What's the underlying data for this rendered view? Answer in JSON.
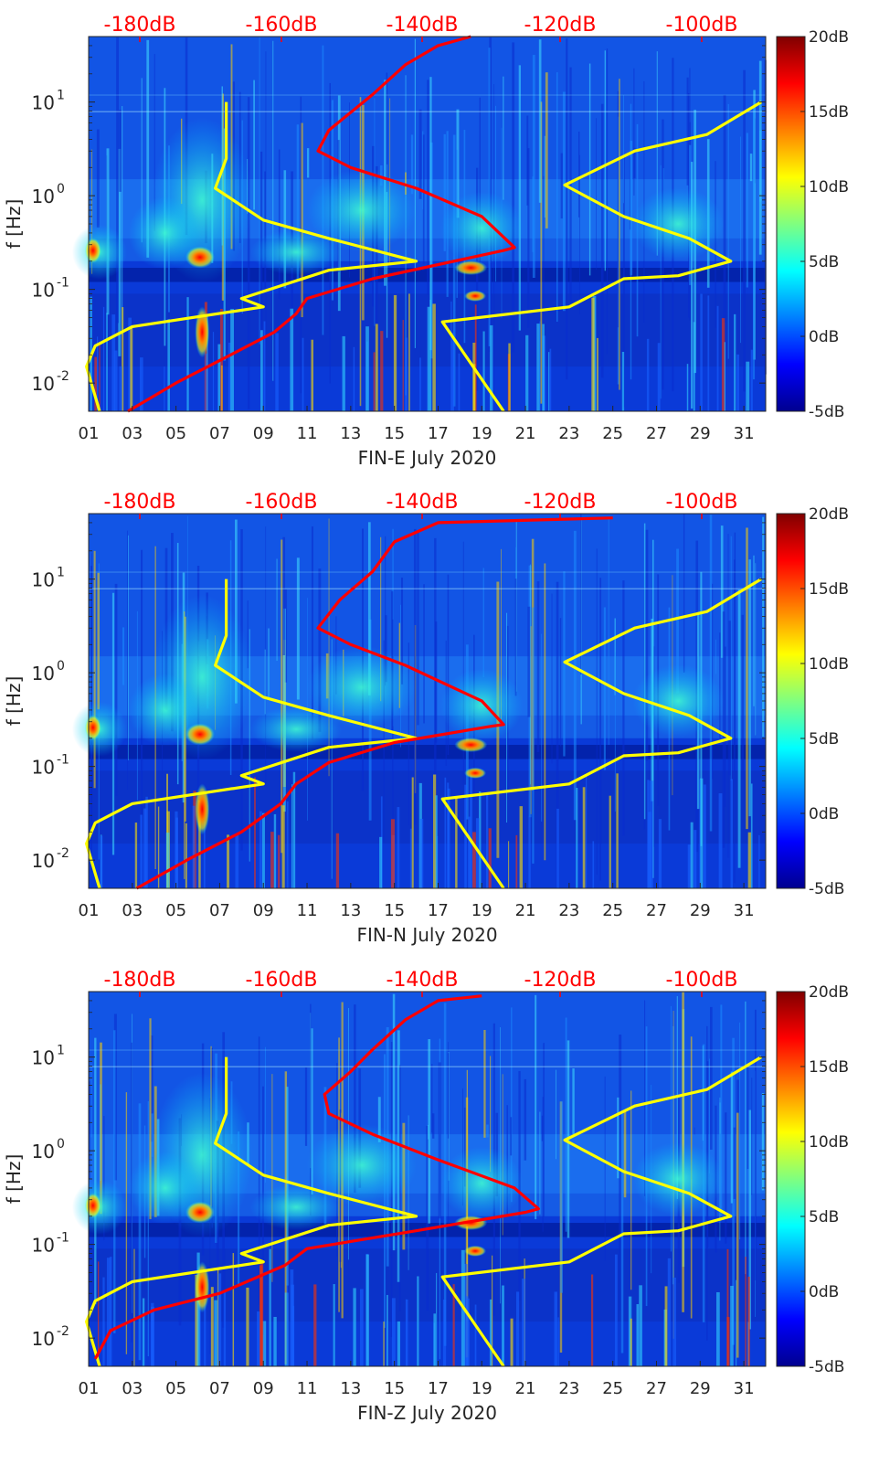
{
  "chart_data": [
    {
      "type": "heatmap",
      "title": "",
      "xlabel": "FIN-E July 2020",
      "ylabel": "f [Hz]",
      "xlim": [
        1,
        32
      ],
      "ylim": [
        0.005,
        50
      ],
      "y_scale": "log",
      "x_ticks": [
        "01",
        "03",
        "05",
        "07",
        "09",
        "11",
        "13",
        "15",
        "17",
        "19",
        "21",
        "23",
        "25",
        "27",
        "29",
        "31"
      ],
      "y_ticks": [
        "10^-2",
        "10^-1",
        "10^0",
        "10^1"
      ],
      "top_axis_ticks": [
        "-180dB",
        "-160dB",
        "-140dB",
        "-120dB",
        "-100dB"
      ],
      "colorbar": {
        "range": [
          -5,
          20
        ],
        "ticks": [
          "20dB",
          "15dB",
          "10dB",
          "5dB",
          "0dB",
          "-5dB"
        ]
      },
      "series": [
        {
          "color": "#ffff00",
          "points": [
            [
              7.3,
              10
            ],
            [
              7.3,
              2.5
            ],
            [
              6.8,
              1.2
            ],
            [
              9,
              0.55
            ],
            [
              12,
              0.35
            ],
            [
              16,
              0.2
            ],
            [
              12,
              0.16
            ],
            [
              8,
              0.08
            ],
            [
              9,
              0.065
            ],
            [
              3,
              0.04
            ],
            [
              1.3,
              0.025
            ],
            [
              0.9,
              0.015
            ],
            [
              1.5,
              0.005
            ]
          ]
        },
        {
          "color": "#ffff00",
          "points": [
            [
              31.8,
              10
            ],
            [
              29.3,
              4.5
            ],
            [
              26,
              3
            ],
            [
              22.8,
              1.3
            ],
            [
              25.5,
              0.6
            ],
            [
              28.5,
              0.35
            ],
            [
              30.4,
              0.2
            ],
            [
              28,
              0.14
            ],
            [
              25.5,
              0.13
            ],
            [
              23,
              0.065
            ],
            [
              17.2,
              0.045
            ],
            [
              20,
              0.005
            ]
          ]
        },
        {
          "color": "#ff0000",
          "points": [
            [
              2.8,
              0.005
            ],
            [
              5,
              0.01
            ],
            [
              7.5,
              0.02
            ],
            [
              9.5,
              0.035
            ],
            [
              10.5,
              0.055
            ],
            [
              11,
              0.08
            ],
            [
              14,
              0.13
            ],
            [
              20,
              0.26
            ],
            [
              20.5,
              0.28
            ],
            [
              19,
              0.6
            ],
            [
              16,
              1.2
            ],
            [
              13,
              2
            ],
            [
              11.5,
              3
            ],
            [
              12,
              5
            ],
            [
              14,
              12
            ],
            [
              15.5,
              25
            ],
            [
              17,
              40
            ],
            [
              18.5,
              50
            ]
          ]
        }
      ]
    },
    {
      "type": "heatmap",
      "title": "",
      "xlabel": "FIN-N July 2020",
      "ylabel": "f [Hz]",
      "xlim": [
        1,
        32
      ],
      "ylim": [
        0.005,
        50
      ],
      "y_scale": "log",
      "x_ticks": [
        "01",
        "03",
        "05",
        "07",
        "09",
        "11",
        "13",
        "15",
        "17",
        "19",
        "21",
        "23",
        "25",
        "27",
        "29",
        "31"
      ],
      "y_ticks": [
        "10^-2",
        "10^-1",
        "10^0",
        "10^1"
      ],
      "top_axis_ticks": [
        "-180dB",
        "-160dB",
        "-140dB",
        "-120dB",
        "-100dB"
      ],
      "colorbar": {
        "range": [
          -5,
          20
        ],
        "ticks": [
          "20dB",
          "15dB",
          "10dB",
          "5dB",
          "0dB",
          "-5dB"
        ]
      },
      "series": [
        {
          "color": "#ffff00",
          "points": [
            [
              7.3,
              10
            ],
            [
              7.3,
              2.5
            ],
            [
              6.8,
              1.2
            ],
            [
              9,
              0.55
            ],
            [
              12,
              0.35
            ],
            [
              16,
              0.2
            ],
            [
              12,
              0.16
            ],
            [
              8,
              0.08
            ],
            [
              9,
              0.065
            ],
            [
              3,
              0.04
            ],
            [
              1.3,
              0.025
            ],
            [
              0.9,
              0.015
            ],
            [
              1.5,
              0.005
            ]
          ]
        },
        {
          "color": "#ffff00",
          "points": [
            [
              31.8,
              10
            ],
            [
              29.3,
              4.5
            ],
            [
              26,
              3
            ],
            [
              22.8,
              1.3
            ],
            [
              25.5,
              0.6
            ],
            [
              28.5,
              0.35
            ],
            [
              30.4,
              0.2
            ],
            [
              28,
              0.14
            ],
            [
              25.5,
              0.13
            ],
            [
              23,
              0.065
            ],
            [
              17.2,
              0.045
            ],
            [
              20,
              0.005
            ]
          ]
        },
        {
          "color": "#ff0000",
          "points": [
            [
              3.2,
              0.005
            ],
            [
              5.5,
              0.01
            ],
            [
              8,
              0.02
            ],
            [
              9.8,
              0.04
            ],
            [
              10.5,
              0.065
            ],
            [
              12,
              0.11
            ],
            [
              15,
              0.18
            ],
            [
              19.5,
              0.27
            ],
            [
              20,
              0.28
            ],
            [
              19,
              0.5
            ],
            [
              15.5,
              1.2
            ],
            [
              13,
              2
            ],
            [
              11.5,
              3
            ],
            [
              12.5,
              6
            ],
            [
              14,
              12
            ],
            [
              15,
              25
            ],
            [
              17,
              40
            ],
            [
              25,
              45
            ]
          ]
        }
      ]
    },
    {
      "type": "heatmap",
      "title": "",
      "xlabel": "FIN-Z July 2020",
      "ylabel": "f [Hz]",
      "xlim": [
        1,
        32
      ],
      "ylim": [
        0.005,
        50
      ],
      "y_scale": "log",
      "x_ticks": [
        "01",
        "03",
        "05",
        "07",
        "09",
        "11",
        "13",
        "15",
        "17",
        "19",
        "21",
        "23",
        "25",
        "27",
        "29",
        "31"
      ],
      "y_ticks": [
        "10^-2",
        "10^-1",
        "10^0",
        "10^1"
      ],
      "top_axis_ticks": [
        "-180dB",
        "-160dB",
        "-140dB",
        "-120dB",
        "-100dB"
      ],
      "colorbar": {
        "range": [
          -5,
          20
        ],
        "ticks": [
          "20dB",
          "15dB",
          "10dB",
          "5dB",
          "0dB",
          "-5dB"
        ]
      },
      "series": [
        {
          "color": "#ffff00",
          "points": [
            [
              7.3,
              10
            ],
            [
              7.3,
              2.5
            ],
            [
              6.8,
              1.2
            ],
            [
              9,
              0.55
            ],
            [
              12,
              0.35
            ],
            [
              16,
              0.2
            ],
            [
              12,
              0.16
            ],
            [
              8,
              0.08
            ],
            [
              9,
              0.065
            ],
            [
              3,
              0.04
            ],
            [
              1.3,
              0.025
            ],
            [
              0.9,
              0.015
            ],
            [
              1.5,
              0.005
            ]
          ]
        },
        {
          "color": "#ffff00",
          "points": [
            [
              31.8,
              10
            ],
            [
              29.3,
              4.5
            ],
            [
              26,
              3
            ],
            [
              22.8,
              1.3
            ],
            [
              25.5,
              0.6
            ],
            [
              28.5,
              0.35
            ],
            [
              30.4,
              0.2
            ],
            [
              28,
              0.14
            ],
            [
              25.5,
              0.13
            ],
            [
              23,
              0.065
            ],
            [
              17.2,
              0.045
            ],
            [
              20,
              0.005
            ]
          ]
        },
        {
          "color": "#ff0000",
          "points": [
            [
              1.3,
              0.006
            ],
            [
              2,
              0.012
            ],
            [
              4,
              0.02
            ],
            [
              7,
              0.03
            ],
            [
              10,
              0.06
            ],
            [
              11,
              0.09
            ],
            [
              16,
              0.14
            ],
            [
              21,
              0.22
            ],
            [
              21.6,
              0.24
            ],
            [
              20.5,
              0.4
            ],
            [
              17,
              0.8
            ],
            [
              14,
              1.5
            ],
            [
              12,
              2.5
            ],
            [
              11.8,
              4
            ],
            [
              13,
              7
            ],
            [
              14,
              12
            ],
            [
              15.5,
              25
            ],
            [
              17,
              40
            ],
            [
              19,
              45
            ]
          ]
        }
      ]
    }
  ]
}
